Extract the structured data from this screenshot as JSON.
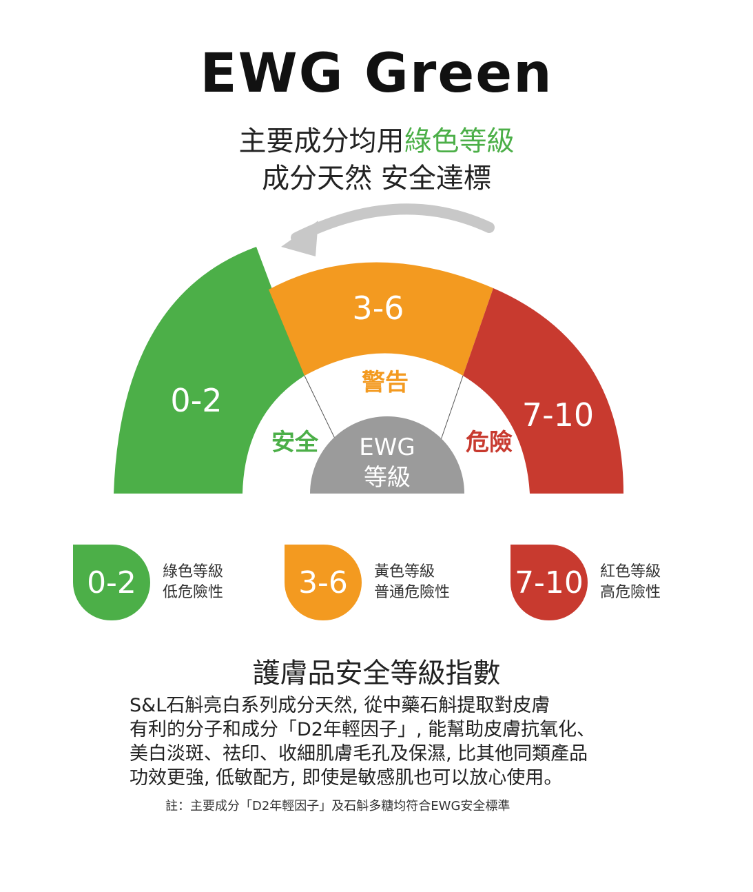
{
  "header": {
    "title": "EWG Green",
    "subtitle_line1_prefix": "主要成分均用",
    "subtitle_line1_highlight": "綠色等級",
    "subtitle_line2": "成分天然  安全達標"
  },
  "gauge": {
    "center_label_1": "EWG",
    "center_label_2": "等級",
    "segments": [
      {
        "range": "0-2",
        "label": "安全",
        "color": "#4caf48"
      },
      {
        "range": "3-6",
        "label": "警告",
        "color": "#f39a20"
      },
      {
        "range": "7-10",
        "label": "危險",
        "color": "#c83a2f"
      }
    ],
    "center_color": "#9b9b9b",
    "arrow_color": "#c8c8c8"
  },
  "legend": [
    {
      "range": "0-2",
      "line1": "綠色等級",
      "line2": "低危險性",
      "color": "#4caf48"
    },
    {
      "range": "3-6",
      "line1": "黃色等級",
      "line2": "普通危險性",
      "color": "#f39a20"
    },
    {
      "range": "7-10",
      "line1": "紅色等級",
      "line2": "高危險性",
      "color": "#c83a2f"
    }
  ],
  "section": {
    "heading": "護膚品安全等級指數",
    "paragraph": [
      "S&L石斛亮白系列成分天然, 從中藥石斛提取對皮膚",
      "有利的分子和成分「D2年輕因子」, 能幫助皮膚抗氧化、",
      "美白淡斑、祛印、收細肌膚毛孔及保濕, 比其他同類產品",
      "功效更強, 低敏配方, 即使是敏感肌也可以放心使用。"
    ],
    "note": "註：主要成分「D2年輕因子」及石斛多糖均符合EWG安全標準"
  }
}
